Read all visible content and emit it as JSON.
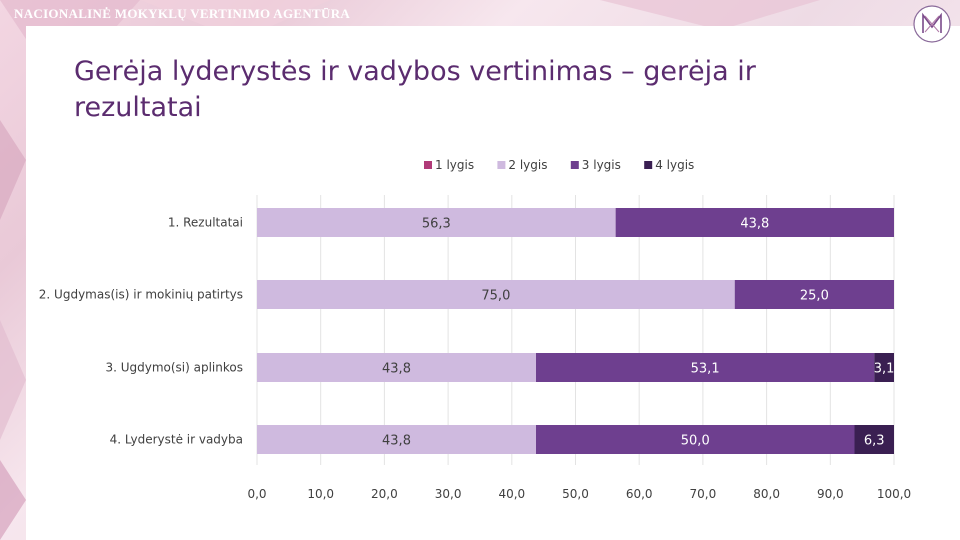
{
  "header": {
    "agency": "NACIONALINĖ MOKYKLŲ VERTINIMO AGENTŪRA",
    "logo_icon": "nmva-logo-icon"
  },
  "slide": {
    "title": "Gerėja lyderystės ir vadybos vertinimas – gerėja ir rezultatai"
  },
  "chart_data": {
    "type": "bar",
    "orientation": "horizontal",
    "stacked": true,
    "title": "",
    "xlabel": "",
    "ylabel": "",
    "xlim": [
      0,
      100
    ],
    "x_ticks": [
      "0,0",
      "10,0",
      "20,0",
      "30,0",
      "40,0",
      "50,0",
      "60,0",
      "70,0",
      "80,0",
      "90,0",
      "100,0"
    ],
    "categories": [
      "1. Rezultatai",
      "2. Ugdymas(is) ir mokinių patirtys",
      "3. Ugdymo(si) aplinkos",
      "4. Lyderystė ir vadyba"
    ],
    "series": [
      {
        "name": "1 lygis",
        "color": "#b03a78",
        "values": [
          0,
          0,
          0,
          0
        ],
        "labels": [
          "",
          "",
          "",
          ""
        ]
      },
      {
        "name": "2 lygis",
        "color": "#cfbadf",
        "values": [
          56.3,
          75.0,
          43.8,
          43.8
        ],
        "labels": [
          "56,3",
          "75,0",
          "43,8",
          "43,8"
        ]
      },
      {
        "name": "3 lygis",
        "color": "#6e3f8f",
        "values": [
          43.8,
          25.0,
          53.1,
          50.0
        ],
        "labels": [
          "43,8",
          "25,0",
          "53,1",
          "50,0"
        ]
      },
      {
        "name": "4 lygis",
        "color": "#3a1f52",
        "values": [
          0,
          0,
          3.1,
          6.3
        ],
        "labels": [
          "",
          "",
          "3,1",
          "6,3"
        ]
      }
    ],
    "legend_position": "top-center"
  }
}
